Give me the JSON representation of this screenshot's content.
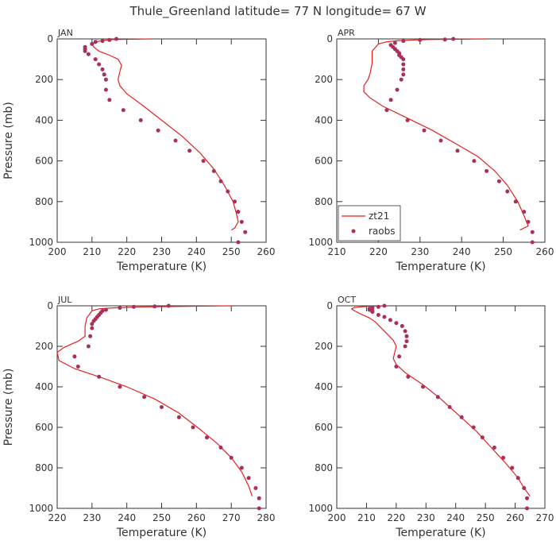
{
  "chart_data": {
    "title": "Thule_Greenland   latitude= 77 N longitude= 67 W",
    "xlabel": "Temperature (K)",
    "ylabel": "Pressure (mb)",
    "legend": {
      "entries": [
        "zt21",
        "raobs"
      ],
      "placement": "bottom-left of APR panel"
    },
    "colors": {
      "model": "#e8201f",
      "obs": "#a8305a"
    },
    "panels": [
      {
        "name": "JAN",
        "type": "line",
        "xlim": [
          200,
          260
        ],
        "xticks": [
          200,
          210,
          220,
          230,
          240,
          250,
          260
        ],
        "ylim": [
          1000,
          0
        ],
        "yticks": [
          0,
          200,
          400,
          600,
          800,
          1000
        ],
        "model": [
          [
            227,
            0
          ],
          [
            216,
            3
          ],
          [
            213,
            8
          ],
          [
            211,
            15
          ],
          [
            210,
            25
          ],
          [
            210.5,
            40
          ],
          [
            212,
            60
          ],
          [
            215,
            80
          ],
          [
            217.5,
            100
          ],
          [
            218.5,
            130
          ],
          [
            218,
            160
          ],
          [
            217.5,
            200
          ],
          [
            218,
            230
          ],
          [
            220,
            270
          ],
          [
            224,
            320
          ],
          [
            230,
            400
          ],
          [
            236,
            480
          ],
          [
            241,
            560
          ],
          [
            245,
            640
          ],
          [
            248,
            720
          ],
          [
            250.5,
            800
          ],
          [
            251.5,
            860
          ],
          [
            252,
            900
          ],
          [
            251,
            930
          ],
          [
            250,
            940
          ]
        ],
        "obs": [
          [
            217,
            0
          ],
          [
            215,
            5
          ],
          [
            213,
            10
          ],
          [
            211,
            15
          ],
          [
            210,
            25
          ],
          [
            208,
            40
          ],
          [
            208,
            50
          ],
          [
            208,
            60
          ],
          [
            209,
            75
          ],
          [
            211,
            100
          ],
          [
            212,
            125
          ],
          [
            213,
            150
          ],
          [
            213.5,
            175
          ],
          [
            214,
            200
          ],
          [
            214,
            250
          ],
          [
            215,
            300
          ],
          [
            219,
            350
          ],
          [
            224,
            400
          ],
          [
            229,
            450
          ],
          [
            234,
            500
          ],
          [
            238,
            550
          ],
          [
            242,
            600
          ],
          [
            245,
            650
          ],
          [
            247,
            700
          ],
          [
            249,
            750
          ],
          [
            251,
            800
          ],
          [
            252,
            850
          ],
          [
            253,
            900
          ],
          [
            254,
            950
          ],
          [
            252,
            1000
          ]
        ]
      },
      {
        "name": "APR",
        "type": "line",
        "xlim": [
          210,
          260
        ],
        "xticks": [
          210,
          220,
          230,
          240,
          250,
          260
        ],
        "ylim": [
          1000,
          0
        ],
        "yticks": [
          0,
          200,
          400,
          600,
          800,
          1000
        ],
        "model": [
          [
            246,
            0
          ],
          [
            232,
            3
          ],
          [
            225,
            8
          ],
          [
            222,
            14
          ],
          [
            220,
            25
          ],
          [
            218.5,
            60
          ],
          [
            218.5,
            120
          ],
          [
            218,
            170
          ],
          [
            217.5,
            200
          ],
          [
            216.5,
            230
          ],
          [
            216.5,
            260
          ],
          [
            218,
            290
          ],
          [
            221,
            330
          ],
          [
            227,
            390
          ],
          [
            233,
            450
          ],
          [
            239,
            520
          ],
          [
            244,
            580
          ],
          [
            248,
            650
          ],
          [
            251,
            720
          ],
          [
            253.5,
            800
          ],
          [
            255,
            870
          ],
          [
            256,
            920
          ],
          [
            254,
            940
          ]
        ],
        "obs": [
          [
            238,
            0
          ],
          [
            236,
            3
          ],
          [
            230,
            5
          ],
          [
            226,
            10
          ],
          [
            224,
            20
          ],
          [
            223,
            30
          ],
          [
            223.5,
            40
          ],
          [
            224,
            50
          ],
          [
            224.5,
            60
          ],
          [
            225,
            70
          ],
          [
            225,
            80
          ],
          [
            225.5,
            90
          ],
          [
            226,
            100
          ],
          [
            226,
            125
          ],
          [
            226,
            150
          ],
          [
            226,
            175
          ],
          [
            225.5,
            200
          ],
          [
            224.5,
            250
          ],
          [
            223,
            300
          ],
          [
            222,
            350
          ],
          [
            227,
            400
          ],
          [
            231,
            450
          ],
          [
            235,
            500
          ],
          [
            239,
            550
          ],
          [
            243,
            600
          ],
          [
            246,
            650
          ],
          [
            249,
            700
          ],
          [
            251,
            750
          ],
          [
            253,
            800
          ],
          [
            255,
            850
          ],
          [
            256,
            900
          ],
          [
            257,
            950
          ],
          [
            257,
            1000
          ]
        ]
      },
      {
        "name": "JUL",
        "type": "line",
        "xlim": [
          220,
          280
        ],
        "xticks": [
          220,
          230,
          240,
          250,
          260,
          270,
          280
        ],
        "ylim": [
          1000,
          0
        ],
        "yticks": [
          0,
          200,
          400,
          600,
          800,
          1000
        ],
        "model": [
          [
            270,
            0
          ],
          [
            255,
            3
          ],
          [
            243,
            6
          ],
          [
            236,
            10
          ],
          [
            232,
            15
          ],
          [
            230,
            25
          ],
          [
            228.5,
            60
          ],
          [
            228,
            100
          ],
          [
            228,
            150
          ],
          [
            226,
            175
          ],
          [
            222,
            205
          ],
          [
            220,
            230
          ],
          [
            220.5,
            270
          ],
          [
            225,
            310
          ],
          [
            232,
            350
          ],
          [
            240,
            400
          ],
          [
            248,
            460
          ],
          [
            255,
            530
          ],
          [
            261,
            610
          ],
          [
            266,
            680
          ],
          [
            270,
            750
          ],
          [
            273,
            820
          ],
          [
            275,
            890
          ],
          [
            276,
            940
          ]
        ],
        "obs": [
          [
            252,
            0
          ],
          [
            248,
            3
          ],
          [
            242,
            5
          ],
          [
            238,
            10
          ],
          [
            234,
            20
          ],
          [
            233,
            25
          ],
          [
            232.5,
            35
          ],
          [
            232,
            45
          ],
          [
            231.5,
            55
          ],
          [
            231,
            65
          ],
          [
            230.5,
            75
          ],
          [
            230,
            90
          ],
          [
            230,
            110
          ],
          [
            229.5,
            150
          ],
          [
            229,
            200
          ],
          [
            225,
            250
          ],
          [
            226,
            300
          ],
          [
            232,
            350
          ],
          [
            238,
            400
          ],
          [
            245,
            450
          ],
          [
            250,
            500
          ],
          [
            255,
            550
          ],
          [
            259,
            600
          ],
          [
            263,
            650
          ],
          [
            267,
            700
          ],
          [
            270,
            750
          ],
          [
            273,
            800
          ],
          [
            275,
            850
          ],
          [
            277,
            900
          ],
          [
            278,
            950
          ],
          [
            278,
            1000
          ]
        ]
      },
      {
        "name": "OCT",
        "type": "line",
        "xlim": [
          200,
          270
        ],
        "xticks": [
          200,
          210,
          220,
          230,
          240,
          250,
          260,
          270
        ],
        "ylim": [
          1000,
          0
        ],
        "yticks": [
          0,
          200,
          400,
          600,
          800,
          1000
        ],
        "model": [
          [
            217,
            0
          ],
          [
            210,
            3
          ],
          [
            206,
            8
          ],
          [
            205,
            15
          ],
          [
            206,
            25
          ],
          [
            208,
            40
          ],
          [
            211,
            60
          ],
          [
            213,
            80
          ],
          [
            215,
            110
          ],
          [
            217,
            140
          ],
          [
            219,
            170
          ],
          [
            220,
            200
          ],
          [
            219.5,
            230
          ],
          [
            219,
            260
          ],
          [
            220,
            290
          ],
          [
            223,
            330
          ],
          [
            229,
            390
          ],
          [
            235,
            460
          ],
          [
            241,
            540
          ],
          [
            247,
            620
          ],
          [
            252,
            700
          ],
          [
            257,
            780
          ],
          [
            261,
            850
          ],
          [
            263,
            900
          ],
          [
            265,
            940
          ]
        ],
        "obs": [
          [
            216,
            0
          ],
          [
            214,
            5
          ],
          [
            212,
            10
          ],
          [
            211,
            15
          ],
          [
            211,
            20
          ],
          [
            212,
            25
          ],
          [
            212,
            30
          ],
          [
            214,
            45
          ],
          [
            216,
            55
          ],
          [
            218,
            70
          ],
          [
            220,
            85
          ],
          [
            222,
            100
          ],
          [
            223,
            125
          ],
          [
            223.5,
            150
          ],
          [
            223.5,
            175
          ],
          [
            223,
            200
          ],
          [
            221,
            250
          ],
          [
            220,
            300
          ],
          [
            224,
            350
          ],
          [
            229,
            400
          ],
          [
            234,
            450
          ],
          [
            238,
            500
          ],
          [
            242,
            550
          ],
          [
            246,
            600
          ],
          [
            249,
            650
          ],
          [
            253,
            700
          ],
          [
            256,
            750
          ],
          [
            259,
            800
          ],
          [
            261,
            850
          ],
          [
            263,
            900
          ],
          [
            264,
            950
          ],
          [
            264,
            1000
          ]
        ]
      }
    ]
  }
}
